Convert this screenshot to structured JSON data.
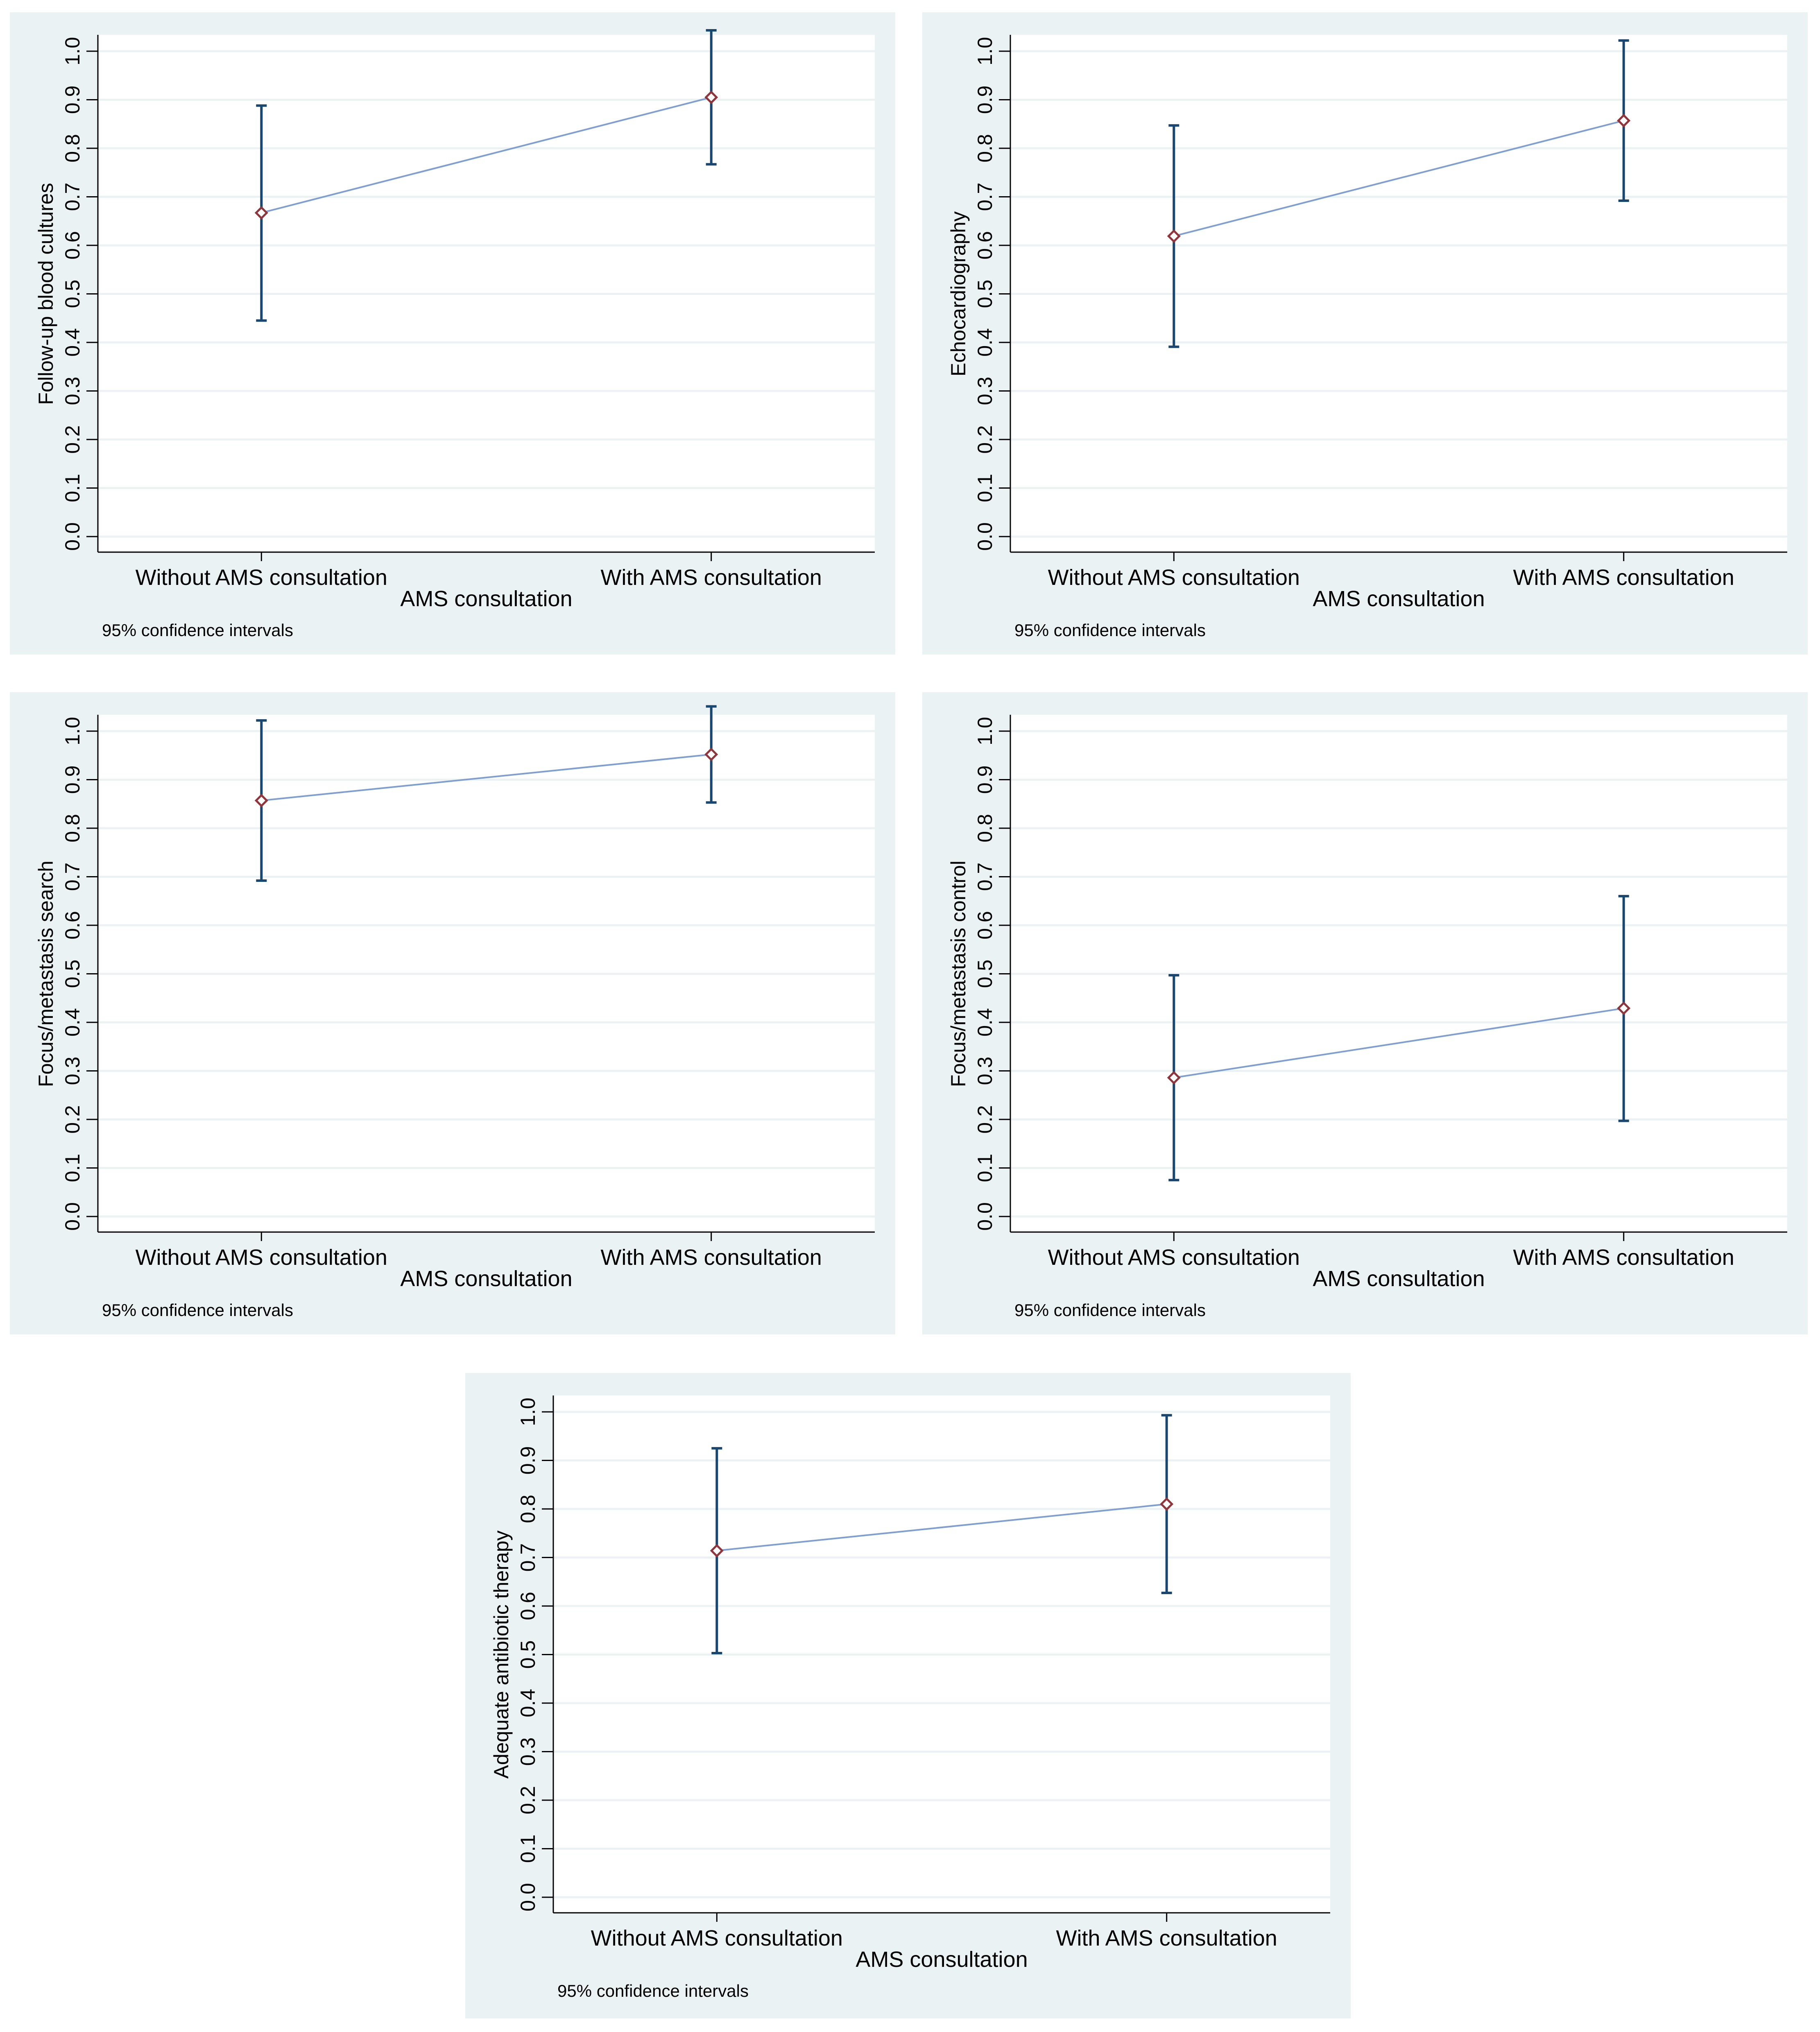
{
  "chart_data": [
    {
      "type": "line",
      "ylabel": "Follow-up blood cultures",
      "xlabel": "AMS consultation",
      "categories": [
        "Without AMS consultation",
        "With AMS consultation"
      ],
      "values": [
        0.667,
        0.905
      ],
      "ci_lower": [
        0.445,
        0.767
      ],
      "ci_upper": [
        0.888,
        1.043
      ],
      "ylim": [
        0,
        1
      ],
      "yticks": [
        "0.0",
        "0.1",
        "0.2",
        "0.3",
        "0.4",
        "0.5",
        "0.6",
        "0.7",
        "0.8",
        "0.9",
        "1.0"
      ],
      "note": "95% confidence intervals"
    },
    {
      "type": "line",
      "ylabel": "Echocardiography",
      "xlabel": "AMS consultation",
      "categories": [
        "Without AMS consultation",
        "With AMS consultation"
      ],
      "values": [
        0.619,
        0.857
      ],
      "ci_lower": [
        0.391,
        0.692
      ],
      "ci_upper": [
        0.847,
        1.022
      ],
      "ylim": [
        0,
        1
      ],
      "yticks": [
        "0.0",
        "0.1",
        "0.2",
        "0.3",
        "0.4",
        "0.5",
        "0.6",
        "0.7",
        "0.8",
        "0.9",
        "1.0"
      ],
      "note": "95% confidence intervals"
    },
    {
      "type": "line",
      "ylabel": "Focus/metastasis search",
      "xlabel": "AMS consultation",
      "categories": [
        "Without AMS consultation",
        "With AMS consultation"
      ],
      "values": [
        0.857,
        0.952
      ],
      "ci_lower": [
        0.692,
        0.853
      ],
      "ci_upper": [
        1.022,
        1.051
      ],
      "ylim": [
        0,
        1
      ],
      "yticks": [
        "0.0",
        "0.1",
        "0.2",
        "0.3",
        "0.4",
        "0.5",
        "0.6",
        "0.7",
        "0.8",
        "0.9",
        "1.0"
      ],
      "note": "95% confidence intervals"
    },
    {
      "type": "line",
      "ylabel": "Focus/metastasis control",
      "xlabel": "AMS consultation",
      "categories": [
        "Without AMS consultation",
        "With AMS consultation"
      ],
      "values": [
        0.286,
        0.429
      ],
      "ci_lower": [
        0.075,
        0.197
      ],
      "ci_upper": [
        0.497,
        0.66
      ],
      "ylim": [
        0,
        1
      ],
      "yticks": [
        "0.0",
        "0.1",
        "0.2",
        "0.3",
        "0.4",
        "0.5",
        "0.6",
        "0.7",
        "0.8",
        "0.9",
        "1.0"
      ],
      "note": "95% confidence intervals"
    },
    {
      "type": "line",
      "ylabel": "Adequate antibiotic therapy",
      "xlabel": "AMS consultation",
      "categories": [
        "Without AMS consultation",
        "With AMS consultation"
      ],
      "values": [
        0.714,
        0.81
      ],
      "ci_lower": [
        0.503,
        0.627
      ],
      "ci_upper": [
        0.925,
        0.993
      ],
      "ylim": [
        0,
        1
      ],
      "yticks": [
        "0.0",
        "0.1",
        "0.2",
        "0.3",
        "0.4",
        "0.5",
        "0.6",
        "0.7",
        "0.8",
        "0.9",
        "1.0"
      ],
      "note": "95% confidence intervals"
    }
  ]
}
